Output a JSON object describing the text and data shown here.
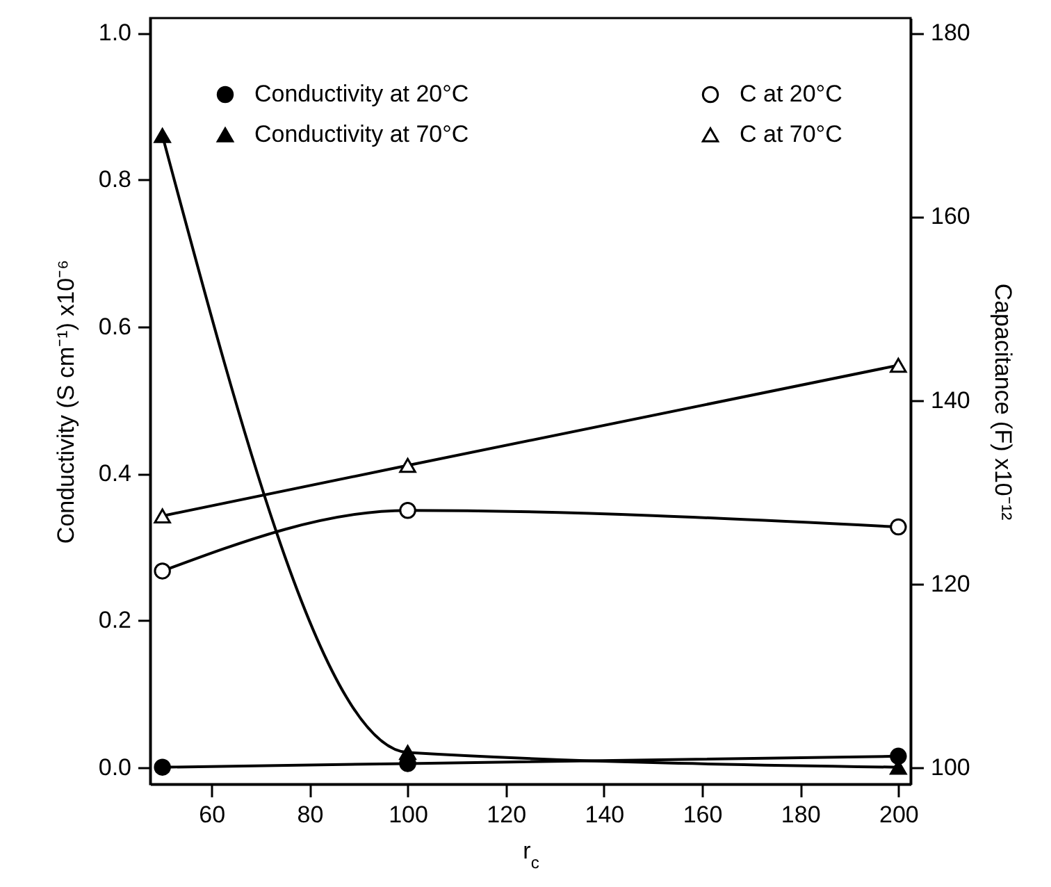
{
  "chart_data": {
    "type": "line",
    "xlabel": "r$_{c}$",
    "ylabel": "Conductivity (S cm⁻¹) x10⁻⁶",
    "y2label": "Capacitance (F) x10⁻¹²",
    "x": [
      50,
      100,
      200
    ],
    "xlim": [
      47.5,
      202.5
    ],
    "xticks": [
      60,
      80,
      100,
      120,
      140,
      160,
      180,
      200
    ],
    "ylim": [
      -0.023,
      1.02
    ],
    "yticks": [
      {
        "value": 0,
        "label": "0.0"
      },
      {
        "value": 0.2,
        "label": "0.2"
      },
      {
        "value": 0.4,
        "label": "0.4"
      },
      {
        "value": 0.6,
        "label": "0.6"
      },
      {
        "value": 0.8,
        "label": "0.8"
      },
      {
        "value": 1,
        "label": "1.0"
      }
    ],
    "y2lim": [
      98.2,
      181.6
    ],
    "y2ticks": [
      100,
      120,
      140,
      160,
      180
    ],
    "legend": "top",
    "grid": false,
    "line_style": "solid",
    "series": [
      {
        "name": "Conductivity at 20°C",
        "color": "#000000",
        "marker": "circle",
        "values": [
          0,
          0.005,
          0.015
        ]
      },
      {
        "name": "Conductivity at 70°C",
        "color": "#000000",
        "marker": "triangle",
        "values": [
          0.86,
          0.02,
          0
        ]
      },
      {
        "name": "C at 20°C",
        "color": "#000000",
        "marker": "circle",
        "axis": "y2",
        "values": [
          121.4,
          128.0,
          126.2
        ]
      },
      {
        "name": "C at 70°C",
        "color": "#000000",
        "marker": "triangle",
        "axis": "y2",
        "values": [
          127.4,
          132.9,
          143.8
        ]
      }
    ]
  }
}
